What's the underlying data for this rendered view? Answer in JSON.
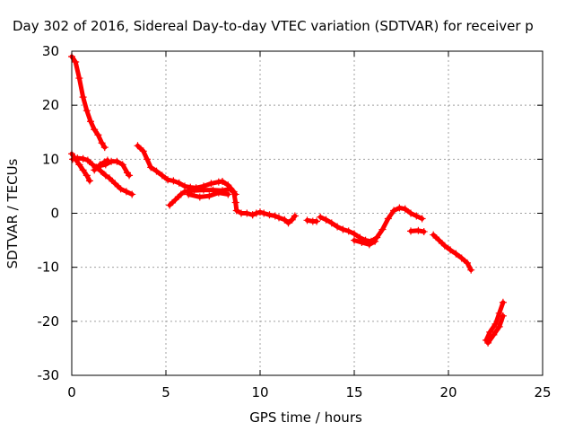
{
  "chart_data": {
    "type": "scatter",
    "title": "Day 302 of 2016, Sidereal Day-to-day VTEC variation (SDTVAR) for receiver p",
    "xlabel": "GPS time / hours",
    "ylabel": "SDTVAR / TECUs",
    "xlim": [
      0,
      25
    ],
    "ylim": [
      -30,
      30
    ],
    "xticks": [
      0,
      5,
      10,
      15,
      20,
      25
    ],
    "yticks": [
      -30,
      -20,
      -10,
      0,
      10,
      20,
      30
    ],
    "grid": true,
    "marker": "+",
    "color": "#ff0000",
    "series": [
      {
        "segments": [
          [
            [
              0.0,
              29.0
            ],
            [
              0.2,
              28.0
            ],
            [
              0.4,
              25.0
            ],
            [
              0.6,
              21.5
            ],
            [
              0.8,
              19.0
            ],
            [
              1.0,
              17.0
            ],
            [
              1.2,
              15.5
            ],
            [
              1.4,
              14.5
            ],
            [
              1.6,
              13.0
            ],
            [
              1.75,
              12.2
            ]
          ],
          [
            [
              0.0,
              11.0
            ],
            [
              0.2,
              10.0
            ],
            [
              0.4,
              9.0
            ],
            [
              0.6,
              8.0
            ],
            [
              0.8,
              7.0
            ],
            [
              0.95,
              6.0
            ]
          ],
          [
            [
              0.05,
              10.0
            ],
            [
              0.3,
              10.2
            ],
            [
              0.6,
              10.1
            ],
            [
              0.85,
              9.8
            ],
            [
              1.1,
              9.0
            ],
            [
              1.3,
              8.5
            ],
            [
              1.55,
              7.8
            ],
            [
              1.8,
              7.0
            ],
            [
              2.0,
              6.5
            ],
            [
              2.3,
              5.5
            ],
            [
              2.6,
              4.5
            ],
            [
              2.9,
              4.0
            ],
            [
              3.2,
              3.5
            ]
          ],
          [
            [
              1.2,
              8.0
            ],
            [
              1.5,
              8.8
            ],
            [
              1.8,
              9.0
            ],
            [
              2.1,
              9.6
            ],
            [
              2.4,
              9.6
            ],
            [
              2.7,
              9.0
            ],
            [
              2.95,
              7.5
            ],
            [
              3.05,
              7.0
            ]
          ],
          [
            [
              1.5,
              9.0
            ],
            [
              1.75,
              9.5
            ],
            [
              1.9,
              9.8
            ]
          ],
          [
            [
              3.5,
              12.5
            ],
            [
              3.8,
              11.5
            ],
            [
              4.0,
              10.0
            ],
            [
              4.2,
              8.5
            ],
            [
              4.5,
              7.8
            ],
            [
              4.8,
              7.0
            ],
            [
              5.1,
              6.2
            ],
            [
              5.4,
              6.0
            ],
            [
              5.7,
              5.6
            ],
            [
              6.0,
              5.0
            ],
            [
              6.3,
              4.8
            ],
            [
              6.6,
              4.7
            ],
            [
              7.0,
              5.0
            ],
            [
              7.4,
              5.5
            ],
            [
              7.8,
              5.8
            ],
            [
              8.0,
              5.9
            ],
            [
              8.3,
              5.2
            ],
            [
              8.6,
              4.0
            ],
            [
              8.7,
              2.0
            ],
            [
              8.75,
              0.5
            ],
            [
              9.0,
              0.0
            ],
            [
              9.3,
              0.0
            ],
            [
              9.6,
              -0.3
            ]
          ],
          [
            [
              5.2,
              1.5
            ],
            [
              5.5,
              2.5
            ],
            [
              5.8,
              3.5
            ],
            [
              6.0,
              4.0
            ],
            [
              6.5,
              4.2
            ],
            [
              7.0,
              4.3
            ],
            [
              7.5,
              4.3
            ],
            [
              8.0,
              4.2
            ],
            [
              8.4,
              4.5
            ],
            [
              8.7,
              3.5
            ]
          ],
          [
            [
              6.2,
              3.5
            ],
            [
              6.8,
              3.0
            ],
            [
              7.3,
              3.2
            ],
            [
              7.8,
              3.8
            ],
            [
              8.3,
              3.5
            ]
          ],
          [
            [
              9.6,
              -0.3
            ],
            [
              9.8,
              0.0
            ],
            [
              10.0,
              0.2
            ],
            [
              10.2,
              0.0
            ],
            [
              10.5,
              -0.3
            ],
            [
              10.8,
              -0.5
            ],
            [
              11.0,
              -0.8
            ],
            [
              11.3,
              -1.2
            ],
            [
              11.5,
              -1.8
            ],
            [
              11.7,
              -1.2
            ],
            [
              11.85,
              -0.5
            ]
          ],
          [
            [
              12.5,
              -1.3
            ],
            [
              12.8,
              -1.5
            ],
            [
              13.0,
              -1.5
            ]
          ],
          [
            [
              13.2,
              -0.7
            ],
            [
              13.5,
              -1.2
            ],
            [
              13.8,
              -1.8
            ],
            [
              14.1,
              -2.5
            ],
            [
              14.4,
              -3.0
            ],
            [
              14.7,
              -3.3
            ],
            [
              15.0,
              -3.8
            ],
            [
              15.3,
              -4.5
            ],
            [
              15.6,
              -5.0
            ],
            [
              15.9,
              -5.2
            ],
            [
              16.2,
              -4.5
            ],
            [
              16.5,
              -3.0
            ],
            [
              16.8,
              -1.0
            ],
            [
              17.1,
              0.5
            ],
            [
              17.4,
              1.0
            ],
            [
              17.7,
              0.8
            ],
            [
              18.0,
              0.0
            ],
            [
              18.3,
              -0.5
            ],
            [
              18.6,
              -1.0
            ]
          ],
          [
            [
              15.0,
              -5.0
            ],
            [
              15.4,
              -5.4
            ],
            [
              15.8,
              -5.8
            ],
            [
              16.1,
              -5.2
            ]
          ],
          [
            [
              18.0,
              -3.3
            ],
            [
              18.4,
              -3.2
            ],
            [
              18.7,
              -3.4
            ]
          ],
          [
            [
              19.2,
              -4.0
            ],
            [
              19.5,
              -5.0
            ],
            [
              19.8,
              -6.0
            ],
            [
              20.1,
              -6.8
            ],
            [
              20.4,
              -7.5
            ],
            [
              20.7,
              -8.3
            ],
            [
              21.0,
              -9.2
            ],
            [
              21.2,
              -10.5
            ]
          ],
          [
            [
              22.0,
              -23.5
            ],
            [
              22.2,
              -22.0
            ],
            [
              22.5,
              -20.5
            ],
            [
              22.7,
              -18.5
            ],
            [
              22.9,
              -16.5
            ]
          ],
          [
            [
              22.1,
              -24.0
            ],
            [
              22.4,
              -22.5
            ],
            [
              22.7,
              -21.0
            ],
            [
              22.9,
              -19.0
            ]
          ]
        ]
      }
    ]
  }
}
